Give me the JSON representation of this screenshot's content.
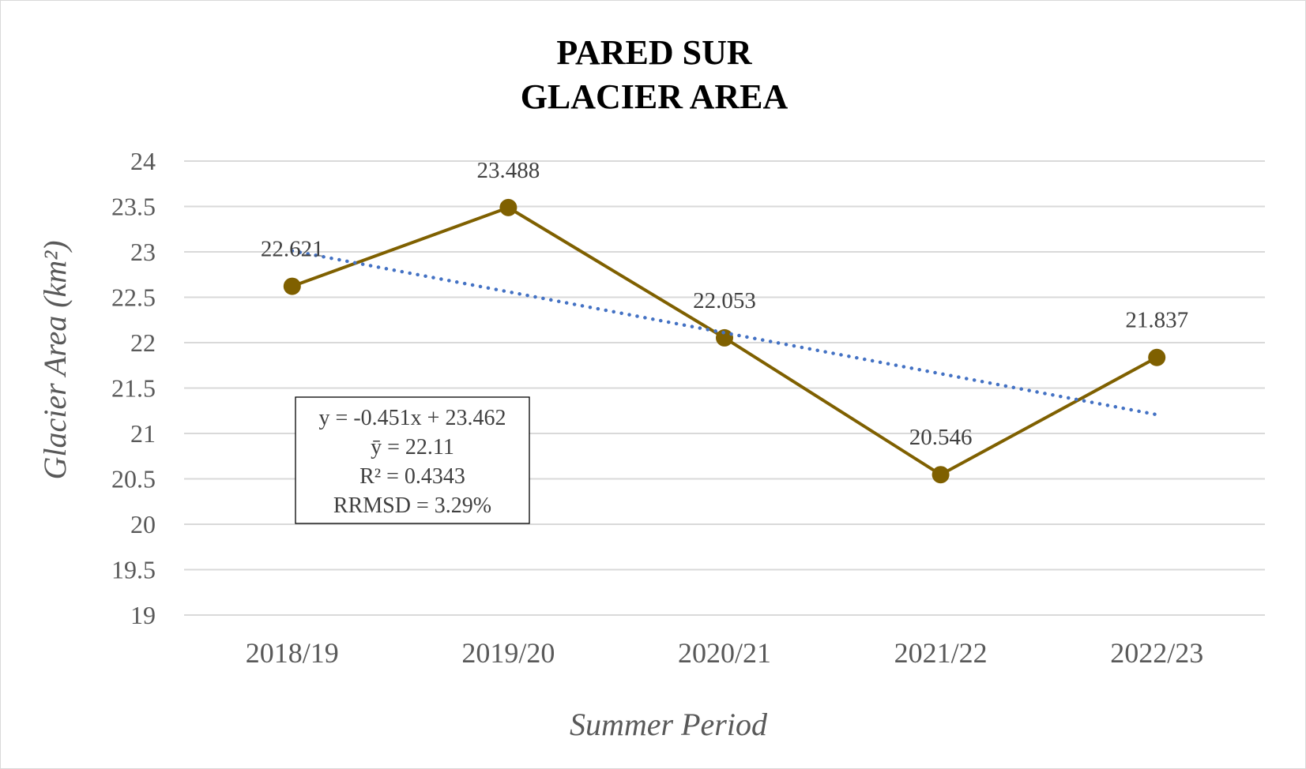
{
  "chart_data": {
    "type": "line",
    "title_lines": [
      "PARED SUR",
      "GLACIER AREA"
    ],
    "xlabel": "Summer Period",
    "ylabel": "Glacier Area (km²)",
    "categories": [
      "2018/19",
      "2019/20",
      "2020/21",
      "2021/22",
      "2022/23"
    ],
    "series": [
      {
        "values": [
          22.621,
          23.488,
          22.053,
          20.546,
          21.837
        ],
        "data_labels": [
          "22.621",
          "23.488",
          "22.053",
          "20.546",
          "21.837"
        ],
        "color": "#7f6000"
      }
    ],
    "trendline": {
      "type": "linear",
      "slope": -0.451,
      "intercept": 23.462,
      "color": "#4472c4",
      "style": "dotted"
    },
    "equation_box": [
      "y = -0.451x + 23.462",
      "ȳ = 22.11",
      "R² = 0.4343",
      "RRMSD =  3.29%"
    ],
    "ylim": [
      19,
      24
    ],
    "yticks": [
      19,
      19.5,
      20,
      20.5,
      21,
      21.5,
      22,
      22.5,
      23,
      23.5,
      24
    ],
    "ytick_labels": [
      "19",
      "19.5",
      "20",
      "20.5",
      "21",
      "21.5",
      "22",
      "22.5",
      "23",
      "23.5",
      "24"
    ],
    "grid": "horizontal",
    "legend": "none"
  }
}
